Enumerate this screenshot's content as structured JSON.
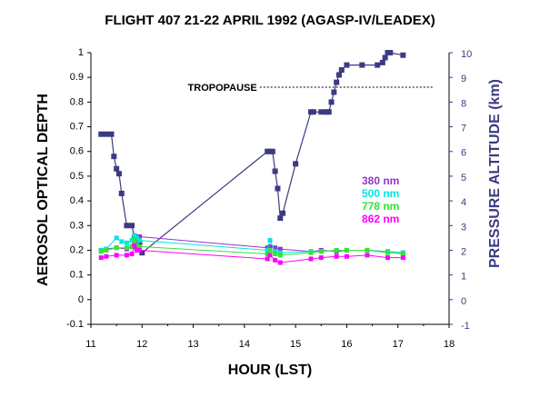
{
  "chart_data": {
    "type": "scatter",
    "title": "FLIGHT 407  21-22 APRIL 1992 (AGASP-IV/LEADEX)",
    "xlabel": "HOUR  (LST)",
    "ylabel": "AEROSOL OPTICAL DEPTH",
    "ylabel_right": "PRESSURE ALTITUDE (km)",
    "xlim": [
      11,
      18
    ],
    "ylim": [
      -0.1,
      1
    ],
    "ylim_right": [
      -1,
      10
    ],
    "x_ticks": [
      "11",
      "12",
      "13",
      "14",
      "15",
      "16",
      "17",
      "18"
    ],
    "y_ticks": [
      "-0.1",
      "0",
      "0.1",
      "0.2",
      "0.3",
      "0.4",
      "0.5",
      "0.6",
      "0.7",
      "0.8",
      "0.9",
      "1"
    ],
    "y_ticks_right": [
      "-1",
      "0",
      "1",
      "2",
      "3",
      "4",
      "5",
      "6",
      "7",
      "8",
      "9",
      "10"
    ],
    "grid": false,
    "legend_position": "right-middle",
    "annotation": {
      "text": "TROPOPAUSE",
      "altitude_km": 8.6,
      "x_range": [
        14.3,
        17.7
      ]
    },
    "series": [
      {
        "name": "380 nm",
        "color": "#9933cc",
        "axis": "left",
        "x": [
          11.2,
          11.3,
          11.5,
          11.7,
          11.8,
          11.85,
          11.9,
          11.95,
          14.45,
          14.5,
          14.6,
          14.7,
          15.3,
          15.5,
          15.8,
          16.0,
          16.4,
          16.8,
          17.1
        ],
        "y": [
          0.2,
          0.205,
          0.21,
          0.205,
          0.215,
          0.26,
          0.255,
          0.255,
          0.21,
          0.215,
          0.21,
          0.205,
          0.195,
          0.2,
          0.195,
          0.2,
          0.2,
          0.195,
          0.19
        ]
      },
      {
        "name": "500 nm",
        "color": "#00e5e5",
        "axis": "left",
        "x": [
          11.2,
          11.3,
          11.5,
          11.6,
          11.7,
          11.8,
          11.85,
          11.9,
          11.95,
          14.45,
          14.5,
          14.6,
          14.7,
          15.3,
          15.5,
          15.8,
          16.0,
          16.4,
          16.8,
          17.1
        ],
        "y": [
          0.2,
          0.205,
          0.25,
          0.235,
          0.23,
          0.24,
          0.26,
          0.25,
          0.24,
          0.2,
          0.24,
          0.195,
          0.19,
          0.195,
          0.195,
          0.2,
          0.2,
          0.2,
          0.195,
          0.19
        ]
      },
      {
        "name": "778 nm",
        "color": "#33e533",
        "axis": "left",
        "x": [
          11.2,
          11.3,
          11.5,
          11.7,
          11.8,
          11.85,
          11.9,
          11.95,
          14.45,
          14.5,
          14.6,
          14.7,
          15.3,
          15.5,
          15.8,
          16.0,
          16.4,
          16.8,
          17.1
        ],
        "y": [
          0.195,
          0.2,
          0.21,
          0.21,
          0.215,
          0.24,
          0.22,
          0.215,
          0.185,
          0.2,
          0.185,
          0.18,
          0.19,
          0.195,
          0.2,
          0.2,
          0.2,
          0.19,
          0.185
        ]
      },
      {
        "name": "862 nm",
        "color": "#ff00ff",
        "axis": "left",
        "x": [
          11.2,
          11.3,
          11.5,
          11.7,
          11.8,
          11.85,
          11.9,
          11.95,
          14.45,
          14.5,
          14.6,
          14.7,
          15.3,
          15.5,
          15.8,
          16.0,
          16.4,
          16.8,
          17.1
        ],
        "y": [
          0.17,
          0.175,
          0.18,
          0.18,
          0.185,
          0.22,
          0.2,
          0.2,
          0.165,
          0.18,
          0.16,
          0.15,
          0.165,
          0.17,
          0.175,
          0.175,
          0.18,
          0.17,
          0.17
        ]
      },
      {
        "axis": "right",
        "color": "#3b3b82",
        "x": [
          11.2,
          11.3,
          11.4,
          11.45,
          11.5,
          11.55,
          11.6,
          11.7,
          11.8,
          11.85,
          11.9,
          11.95,
          12.0,
          14.45,
          14.5,
          14.55,
          14.6,
          14.65,
          14.7,
          14.75,
          15.0,
          15.3,
          15.35,
          15.5,
          15.6,
          15.65,
          15.7,
          15.75,
          15.8,
          15.85,
          15.9,
          16.0,
          16.3,
          16.6,
          16.7,
          16.75,
          16.8,
          16.85,
          17.1
        ],
        "y": [
          6.7,
          6.7,
          6.7,
          5.8,
          5.3,
          5.1,
          4.3,
          3.0,
          3.0,
          2.5,
          2.1,
          2.3,
          1.9,
          6.0,
          6.0,
          6.0,
          5.2,
          4.5,
          3.3,
          3.5,
          5.5,
          7.6,
          7.6,
          7.6,
          7.6,
          7.6,
          8.0,
          8.4,
          8.8,
          9.1,
          9.3,
          9.5,
          9.5,
          9.5,
          9.6,
          9.8,
          10.0,
          10.0,
          9.9
        ]
      }
    ]
  }
}
